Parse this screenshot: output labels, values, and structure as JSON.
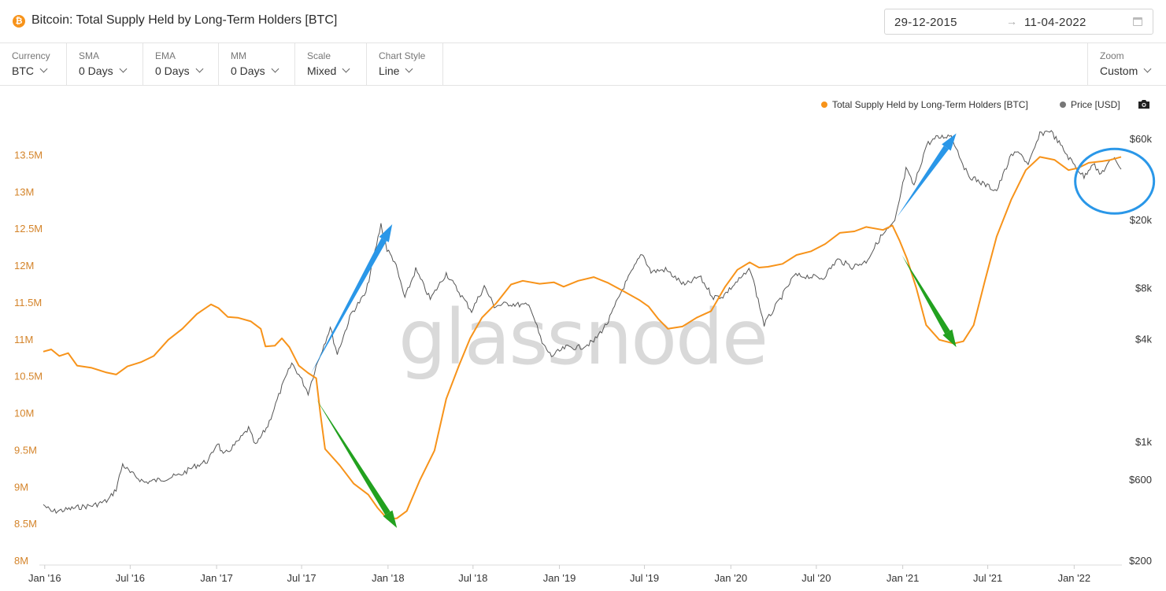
{
  "header": {
    "icon_glyph": "₿",
    "title": "Bitcoin: Total Supply Held by Long-Term Holders [BTC]",
    "date_from": "29-12-2015",
    "date_arrow": "→",
    "date_to": "11-04-2022"
  },
  "toolbar": {
    "currency": {
      "label": "Currency",
      "value": "BTC"
    },
    "sma": {
      "label": "SMA",
      "value": "0 Days"
    },
    "ema": {
      "label": "EMA",
      "value": "0 Days"
    },
    "mm": {
      "label": "MM",
      "value": "0 Days"
    },
    "scale": {
      "label": "Scale",
      "value": "Mixed"
    },
    "chart_style": {
      "label": "Chart Style",
      "value": "Line"
    },
    "zoom": {
      "label": "Zoom",
      "value": "Custom"
    }
  },
  "legend": {
    "lth": "Total Supply Held by Long-Term Holders [BTC]",
    "price": "Price [USD]"
  },
  "watermark": "glassnode",
  "colors": {
    "lth": "#f7931a",
    "price": "#555555",
    "up_arrow": "#2a97e8",
    "down_arrow": "#22a11f",
    "circle": "#2a97e8"
  },
  "chart_data": {
    "type": "line",
    "title": "Bitcoin: Total Supply Held by Long-Term Holders [BTC]",
    "x_ticks": [
      "Jan '16",
      "Jul '16",
      "Jan '17",
      "Jul '17",
      "Jan '18",
      "Jul '18",
      "Jan '19",
      "Jul '19",
      "Jan '20",
      "Jul '20",
      "Jan '21",
      "Jul '21",
      "Jan '22"
    ],
    "xlim": [
      "2015-12-29",
      "2022-04-11"
    ],
    "y_left": {
      "ticks": [
        "13.5M",
        "13M",
        "12.5M",
        "12M",
        "11.5M",
        "11M",
        "10.5M",
        "10M",
        "9.5M",
        "9M",
        "8.5M",
        "8M"
      ],
      "ylim": [
        8000000,
        13900000
      ],
      "scale": "linear"
    },
    "y_right": {
      "ticks": [
        "$60k",
        "$20k",
        "$8k",
        "$4k",
        "$1k",
        "$600",
        "$200"
      ],
      "tick_values": [
        60000,
        20000,
        8000,
        4000,
        1000,
        600,
        200
      ],
      "ylim": [
        200,
        60000
      ],
      "scale": "log"
    },
    "grid": false,
    "legend_position": "top-right",
    "series": [
      {
        "name": "Total Supply Held by Long-Term Holders [BTC]",
        "axis": "left",
        "points": [
          [
            "2015-12-29",
            10840000
          ],
          [
            "2016-01-15",
            10870000
          ],
          [
            "2016-02-01",
            10780000
          ],
          [
            "2016-02-20",
            10820000
          ],
          [
            "2016-03-10",
            10650000
          ],
          [
            "2016-04-10",
            10620000
          ],
          [
            "2016-05-10",
            10560000
          ],
          [
            "2016-06-01",
            10530000
          ],
          [
            "2016-06-25",
            10640000
          ],
          [
            "2016-07-25",
            10700000
          ],
          [
            "2016-08-20",
            10780000
          ],
          [
            "2016-09-20",
            11000000
          ],
          [
            "2016-10-20",
            11150000
          ],
          [
            "2016-11-20",
            11350000
          ],
          [
            "2016-12-20",
            11480000
          ],
          [
            "2017-01-05",
            11430000
          ],
          [
            "2017-01-25",
            11310000
          ],
          [
            "2017-02-15",
            11300000
          ],
          [
            "2017-03-15",
            11250000
          ],
          [
            "2017-04-05",
            11150000
          ],
          [
            "2017-04-15",
            10910000
          ],
          [
            "2017-05-05",
            10920000
          ],
          [
            "2017-05-20",
            11020000
          ],
          [
            "2017-06-05",
            10900000
          ],
          [
            "2017-06-25",
            10650000
          ],
          [
            "2017-07-15",
            10550000
          ],
          [
            "2017-08-01",
            10480000
          ],
          [
            "2017-08-10",
            10000000
          ],
          [
            "2017-08-20",
            9520000
          ],
          [
            "2017-09-20",
            9300000
          ],
          [
            "2017-10-20",
            9050000
          ],
          [
            "2017-11-20",
            8900000
          ],
          [
            "2017-12-10",
            8720000
          ],
          [
            "2017-12-31",
            8570000
          ],
          [
            "2018-01-20",
            8580000
          ],
          [
            "2018-02-10",
            8680000
          ],
          [
            "2018-03-10",
            9100000
          ],
          [
            "2018-04-10",
            9500000
          ],
          [
            "2018-05-05",
            10200000
          ],
          [
            "2018-06-01",
            10650000
          ],
          [
            "2018-06-25",
            11020000
          ],
          [
            "2018-07-20",
            11300000
          ],
          [
            "2018-08-20",
            11500000
          ],
          [
            "2018-09-20",
            11750000
          ],
          [
            "2018-10-15",
            11800000
          ],
          [
            "2018-11-20",
            11760000
          ],
          [
            "2018-12-20",
            11780000
          ],
          [
            "2019-01-10",
            11720000
          ],
          [
            "2019-02-10",
            11800000
          ],
          [
            "2019-03-15",
            11850000
          ],
          [
            "2019-04-15",
            11770000
          ],
          [
            "2019-05-20",
            11650000
          ],
          [
            "2019-06-20",
            11540000
          ],
          [
            "2019-07-10",
            11450000
          ],
          [
            "2019-07-31",
            11280000
          ],
          [
            "2019-08-20",
            11150000
          ],
          [
            "2019-09-20",
            11180000
          ],
          [
            "2019-10-20",
            11300000
          ],
          [
            "2019-11-20",
            11390000
          ],
          [
            "2019-12-20",
            11720000
          ],
          [
            "2020-01-15",
            11950000
          ],
          [
            "2020-02-10",
            12050000
          ],
          [
            "2020-03-01",
            11980000
          ],
          [
            "2020-03-20",
            11990000
          ],
          [
            "2020-04-20",
            12030000
          ],
          [
            "2020-05-20",
            12150000
          ],
          [
            "2020-06-20",
            12200000
          ],
          [
            "2020-07-20",
            12300000
          ],
          [
            "2020-08-20",
            12450000
          ],
          [
            "2020-09-20",
            12470000
          ],
          [
            "2020-10-15",
            12530000
          ],
          [
            "2020-11-20",
            12490000
          ],
          [
            "2020-12-10",
            12550000
          ],
          [
            "2020-12-25",
            12350000
          ],
          [
            "2021-01-10",
            12100000
          ],
          [
            "2021-01-30",
            11700000
          ],
          [
            "2021-02-20",
            11200000
          ],
          [
            "2021-03-20",
            11000000
          ],
          [
            "2021-04-20",
            10950000
          ],
          [
            "2021-05-10",
            10980000
          ],
          [
            "2021-06-01",
            11200000
          ],
          [
            "2021-06-25",
            11800000
          ],
          [
            "2021-07-20",
            12400000
          ],
          [
            "2021-08-20",
            12900000
          ],
          [
            "2021-09-20",
            13300000
          ],
          [
            "2021-10-20",
            13480000
          ],
          [
            "2021-11-20",
            13440000
          ],
          [
            "2021-12-20",
            13300000
          ],
          [
            "2022-01-10",
            13330000
          ],
          [
            "2022-02-01",
            13400000
          ],
          [
            "2022-03-01",
            13420000
          ],
          [
            "2022-03-20",
            13440000
          ],
          [
            "2022-04-11",
            13480000
          ]
        ]
      },
      {
        "name": "Price [USD]",
        "axis": "right",
        "points": [
          [
            "2015-12-29",
            430
          ],
          [
            "2016-01-15",
            390
          ],
          [
            "2016-02-15",
            400
          ],
          [
            "2016-03-15",
            415
          ],
          [
            "2016-04-15",
            425
          ],
          [
            "2016-05-15",
            455
          ],
          [
            "2016-06-01",
            530
          ],
          [
            "2016-06-15",
            740
          ],
          [
            "2016-07-01",
            660
          ],
          [
            "2016-08-01",
            580
          ],
          [
            "2016-09-01",
            600
          ],
          [
            "2016-10-15",
            640
          ],
          [
            "2016-11-15",
            720
          ],
          [
            "2016-12-15",
            780
          ],
          [
            "2017-01-03",
            1000
          ],
          [
            "2017-01-15",
            830
          ],
          [
            "2017-02-15",
            1000
          ],
          [
            "2017-03-10",
            1200
          ],
          [
            "2017-03-25",
            950
          ],
          [
            "2017-04-20",
            1250
          ],
          [
            "2017-05-20",
            2100
          ],
          [
            "2017-06-10",
            2900
          ],
          [
            "2017-06-25",
            2500
          ],
          [
            "2017-07-15",
            1950
          ],
          [
            "2017-08-01",
            2800
          ],
          [
            "2017-08-31",
            4700
          ],
          [
            "2017-09-15",
            3300
          ],
          [
            "2017-10-15",
            5700
          ],
          [
            "2017-11-15",
            7500
          ],
          [
            "2017-12-17",
            19000
          ],
          [
            "2017-12-30",
            13500
          ],
          [
            "2018-01-15",
            11500
          ],
          [
            "2018-02-06",
            7000
          ],
          [
            "2018-03-01",
            10300
          ],
          [
            "2018-04-01",
            6900
          ],
          [
            "2018-05-05",
            9800
          ],
          [
            "2018-06-28",
            5900
          ],
          [
            "2018-07-25",
            8200
          ],
          [
            "2018-08-15",
            6300
          ],
          [
            "2018-09-15",
            6500
          ],
          [
            "2018-10-31",
            6300
          ],
          [
            "2018-11-25",
            3800
          ],
          [
            "2018-12-15",
            3200
          ],
          [
            "2019-01-15",
            3600
          ],
          [
            "2019-02-15",
            3600
          ],
          [
            "2019-03-15",
            3900
          ],
          [
            "2019-04-15",
            5100
          ],
          [
            "2019-05-15",
            7900
          ],
          [
            "2019-06-26",
            12900
          ],
          [
            "2019-07-15",
            10000
          ],
          [
            "2019-08-15",
            10300
          ],
          [
            "2019-09-25",
            8300
          ],
          [
            "2019-10-26",
            9400
          ],
          [
            "2019-11-25",
            7100
          ],
          [
            "2019-12-15",
            7200
          ],
          [
            "2020-01-15",
            8800
          ],
          [
            "2020-02-12",
            10300
          ],
          [
            "2020-03-12",
            4900
          ],
          [
            "2020-04-15",
            6900
          ],
          [
            "2020-05-15",
            9500
          ],
          [
            "2020-06-15",
            9400
          ],
          [
            "2020-07-15",
            9200
          ],
          [
            "2020-08-15",
            11800
          ],
          [
            "2020-09-15",
            10700
          ],
          [
            "2020-10-15",
            11500
          ],
          [
            "2020-11-15",
            16000
          ],
          [
            "2020-12-15",
            19500
          ],
          [
            "2021-01-08",
            40000
          ],
          [
            "2021-01-25",
            32000
          ],
          [
            "2021-02-21",
            56000
          ],
          [
            "2021-03-13",
            61000
          ],
          [
            "2021-04-14",
            63500
          ],
          [
            "2021-05-19",
            37000
          ],
          [
            "2021-06-20",
            33000
          ],
          [
            "2021-07-20",
            30000
          ],
          [
            "2021-08-20",
            48000
          ],
          [
            "2021-09-07",
            51000
          ],
          [
            "2021-09-25",
            42000
          ],
          [
            "2021-10-20",
            64000
          ],
          [
            "2021-11-10",
            68000
          ],
          [
            "2021-11-30",
            57000
          ],
          [
            "2021-12-20",
            47000
          ],
          [
            "2022-01-22",
            36000
          ],
          [
            "2022-02-10",
            44000
          ],
          [
            "2022-02-24",
            37000
          ],
          [
            "2022-03-28",
            47500
          ],
          [
            "2022-04-11",
            40000
          ]
        ]
      }
    ],
    "annotations": [
      {
        "shape": "arrow",
        "color": "blue",
        "from": [
          "2017-07-20",
          2500
        ],
        "to": [
          "2018-01-10",
          19000
        ]
      },
      {
        "shape": "arrow",
        "color": "green",
        "from": [
          "2017-08-01",
          10200000
        ],
        "to": [
          "2018-01-20",
          8450000
        ]
      },
      {
        "shape": "arrow",
        "color": "blue",
        "from": [
          "2020-12-20",
          21000
        ],
        "to": [
          "2021-04-25",
          65000
        ]
      },
      {
        "shape": "arrow",
        "color": "green",
        "from": [
          "2020-12-30",
          12150000
        ],
        "to": [
          "2021-04-25",
          10900000
        ]
      },
      {
        "shape": "ellipse",
        "color": "blue",
        "center": [
          "2022-01-20",
          13150000
        ]
      }
    ]
  }
}
